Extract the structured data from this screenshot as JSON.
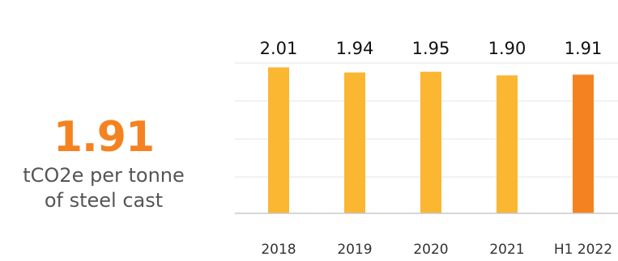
{
  "headline": {
    "value": "1.91",
    "caption_line1": "tCO2e per tonne",
    "caption_line2": "of steel cast"
  },
  "colors": {
    "accent": "#f58220",
    "bar": "#fbb632",
    "bar_highlight": "#f58220",
    "grid": "#e6e6e6",
    "axis": "#c8c8c8"
  },
  "chart_data": {
    "type": "bar",
    "title": "",
    "xlabel": "",
    "ylabel": "",
    "categories": [
      "2018",
      "2019",
      "2020",
      "2021",
      "H1 2022"
    ],
    "values": [
      2.01,
      1.94,
      1.95,
      1.9,
      1.91
    ],
    "value_labels": [
      "2.01",
      "1.94",
      "1.95",
      "1.90",
      "1.91"
    ],
    "highlight": "H1 2022",
    "ylim": [
      0,
      2.07
    ],
    "grid": true,
    "legend": "none"
  }
}
